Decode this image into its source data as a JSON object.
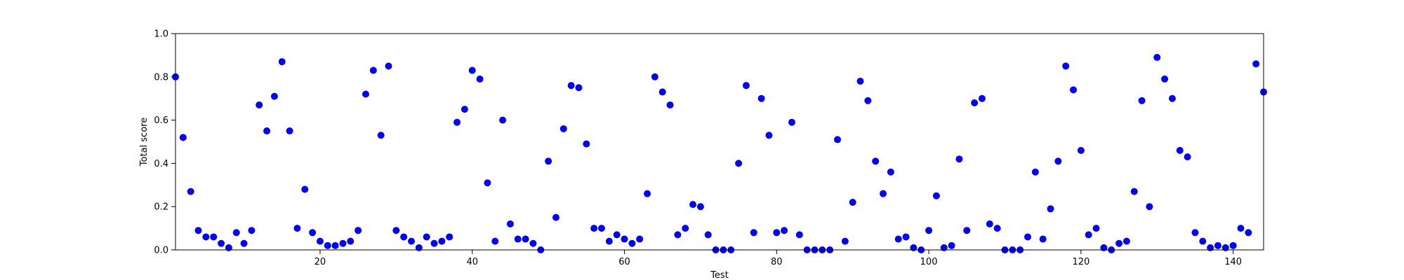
{
  "chart_data": {
    "type": "scatter",
    "title": "",
    "xlabel": "Test",
    "ylabel": "Total score",
    "xlim": [
      1,
      144
    ],
    "ylim": [
      0.0,
      1.0
    ],
    "x_ticks": [
      20,
      40,
      60,
      80,
      100,
      120,
      140
    ],
    "x_tick_labels": [
      "20",
      "40",
      "60",
      "80",
      "100",
      "120",
      "140"
    ],
    "y_ticks": [
      0.0,
      0.2,
      0.4,
      0.6,
      0.8,
      1.0
    ],
    "y_tick_labels": [
      "0.0",
      "0.2",
      "0.4",
      "0.6",
      "0.8",
      "1.0"
    ],
    "grid": false,
    "legend": false,
    "marker_color": "#0000ff",
    "x": [
      1,
      2,
      3,
      4,
      5,
      6,
      7,
      8,
      9,
      10,
      11,
      12,
      13,
      14,
      15,
      16,
      17,
      18,
      19,
      20,
      21,
      22,
      23,
      24,
      25,
      26,
      27,
      28,
      29,
      30,
      31,
      32,
      33,
      34,
      35,
      36,
      37,
      38,
      39,
      40,
      41,
      42,
      43,
      44,
      45,
      46,
      47,
      48,
      49,
      50,
      51,
      52,
      53,
      54,
      55,
      56,
      57,
      58,
      59,
      60,
      61,
      62,
      63,
      64,
      65,
      66,
      67,
      68,
      69,
      70,
      71,
      72,
      73,
      74,
      75,
      76,
      77,
      78,
      79,
      80,
      81,
      82,
      83,
      84,
      85,
      86,
      87,
      88,
      89,
      90,
      91,
      92,
      93,
      94,
      95,
      96,
      97,
      98,
      99,
      100,
      101,
      102,
      103,
      104,
      105,
      106,
      107,
      108,
      109,
      110,
      111,
      112,
      113,
      114,
      115,
      116,
      117,
      118,
      119,
      120,
      121,
      122,
      123,
      124,
      125,
      126,
      127,
      128,
      129,
      130,
      131,
      132,
      133,
      134,
      135,
      136,
      137,
      138,
      139,
      140,
      141,
      142,
      143,
      144
    ],
    "y": [
      0.8,
      0.52,
      0.27,
      0.09,
      0.06,
      0.06,
      0.03,
      0.01,
      0.08,
      0.03,
      0.09,
      0.67,
      0.55,
      0.71,
      0.87,
      0.55,
      0.1,
      0.28,
      0.08,
      0.04,
      0.02,
      0.02,
      0.03,
      0.04,
      0.09,
      0.72,
      0.83,
      0.53,
      0.85,
      0.09,
      0.06,
      0.04,
      0.01,
      0.06,
      0.03,
      0.04,
      0.06,
      0.59,
      0.65,
      0.83,
      0.79,
      0.31,
      0.04,
      0.6,
      0.12,
      0.05,
      0.05,
      0.03,
      0.0,
      0.41,
      0.15,
      0.56,
      0.76,
      0.75,
      0.49,
      0.1,
      0.1,
      0.04,
      0.07,
      0.05,
      0.03,
      0.05,
      0.26,
      0.8,
      0.73,
      0.67,
      0.07,
      0.1,
      0.21,
      0.2,
      0.07,
      0.0,
      0.0,
      0.0,
      0.4,
      0.76,
      0.08,
      0.7,
      0.53,
      0.08,
      0.09,
      0.59,
      0.07,
      0.0,
      0.0,
      0.0,
      0.0,
      0.51,
      0.04,
      0.22,
      0.78,
      0.69,
      0.41,
      0.26,
      0.36,
      0.05,
      0.06,
      0.01,
      0.0,
      0.09,
      0.25,
      0.01,
      0.02,
      0.42,
      0.09,
      0.68,
      0.7,
      0.12,
      0.1,
      0.0,
      0.0,
      0.0,
      0.06,
      0.36,
      0.05,
      0.19,
      0.41,
      0.85,
      0.74,
      0.46,
      0.07,
      0.1,
      0.01,
      0.0,
      0.03,
      0.04,
      0.27,
      0.69,
      0.2,
      0.89,
      0.79,
      0.7,
      0.46,
      0.43,
      0.08,
      0.04,
      0.01,
      0.02,
      0.01,
      0.02,
      0.1,
      0.08,
      0.86,
      0.73
    ]
  }
}
